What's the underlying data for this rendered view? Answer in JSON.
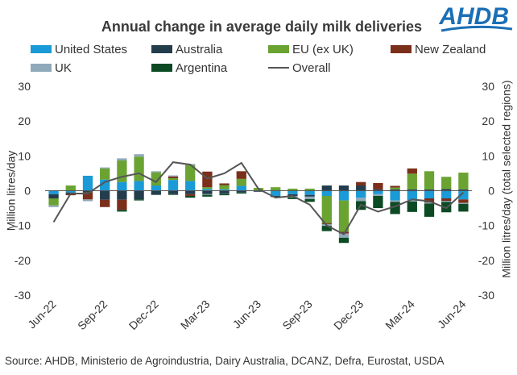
{
  "chart_data": {
    "type": "bar",
    "stacked": true,
    "title": "Annual change in average daily milk deliveries",
    "ylabel": "Million litres/day",
    "ylabel_right": "Million litres/day (total selected regions)",
    "ylim": [
      -30,
      30
    ],
    "yticks": [
      -30,
      -20,
      -10,
      0,
      10,
      20,
      30
    ],
    "grid": false,
    "legend_position": "top",
    "x": [
      "Jun-22",
      "Jul-22",
      "Aug-22",
      "Sep-22",
      "Oct-22",
      "Nov-22",
      "Dec-22",
      "Jan-23",
      "Feb-23",
      "Mar-23",
      "Apr-23",
      "May-23",
      "Jun-23",
      "Jul-23",
      "Aug-23",
      "Sep-23",
      "Oct-23",
      "Nov-23",
      "Dec-23",
      "Jan-24",
      "Feb-24",
      "Mar-24",
      "Apr-24",
      "May-24",
      "Jun-24"
    ],
    "x_tick_labels": [
      "Jun-22",
      "Sep-22",
      "Dec-22",
      "Mar-23",
      "Jun-23",
      "Sep-23",
      "Dec-23",
      "Mar-24",
      "Jun-24"
    ],
    "series": [
      {
        "name": "United States",
        "color": "#1a9ad6",
        "values": [
          -1.0,
          -0.5,
          4.3,
          3.2,
          2.5,
          2.8,
          1.5,
          3.1,
          2.8,
          0.5,
          0.4,
          1.4,
          0.0,
          -1.5,
          -1.0,
          -1.2,
          -1.5,
          -2.8,
          -2.0,
          -1.0,
          -2.8,
          -2.7,
          -2.2,
          -2.2,
          -2.5
        ]
      },
      {
        "name": "Australia",
        "color": "#233d4d",
        "values": [
          -1.2,
          -0.5,
          -0.5,
          -2.6,
          -2.6,
          -2.5,
          -1.2,
          -1.0,
          -1.0,
          -1.0,
          -0.8,
          -0.5,
          -0.3,
          -0.3,
          -0.5,
          -0.5,
          1.5,
          1.5,
          1.5,
          0.4,
          0.4,
          0.4,
          0.4,
          0.5,
          0.4
        ]
      },
      {
        "name": "EU (ex UK)",
        "color": "#6aa332",
        "values": [
          -2.0,
          1.5,
          0.0,
          3.2,
          6.2,
          7.0,
          3.8,
          0.5,
          4.5,
          0.5,
          1.2,
          2.0,
          0.8,
          1.0,
          0.6,
          0.6,
          -7.8,
          -9.0,
          0.0,
          0.0,
          0.5,
          4.5,
          5.2,
          3.5,
          4.8
        ]
      },
      {
        "name": "New Zealand",
        "color": "#7b2f1a",
        "values": [
          0.0,
          -0.3,
          -2.0,
          -2.1,
          -2.9,
          0.0,
          0.0,
          0.5,
          -0.5,
          4.5,
          0.5,
          2.2,
          0.0,
          0.0,
          0.0,
          0.0,
          -0.3,
          -0.5,
          1.0,
          1.8,
          0.5,
          1.5,
          -1.2,
          -0.7,
          -1.0
        ]
      },
      {
        "name": "UK",
        "color": "#8fa9ba",
        "values": [
          -0.5,
          0.0,
          -0.5,
          0.3,
          0.6,
          0.7,
          0.3,
          0.3,
          0.4,
          -0.2,
          -0.1,
          0.0,
          0.0,
          -0.1,
          -0.4,
          -0.7,
          -0.5,
          -1.2,
          -1.0,
          -0.5,
          -0.4,
          -0.4,
          -0.3,
          -0.3,
          -0.3
        ]
      },
      {
        "name": "Argentina",
        "color": "#0c4a23",
        "values": [
          0.0,
          0.0,
          0.0,
          0.0,
          -0.5,
          -0.3,
          0.0,
          -0.2,
          -0.5,
          -0.5,
          -0.4,
          -0.3,
          0.0,
          0.0,
          -0.5,
          -0.8,
          -1.5,
          -1.5,
          -2.5,
          -3.5,
          -3.5,
          -3.0,
          -3.8,
          -3.0,
          -2.2
        ]
      }
    ],
    "overall": {
      "name": "Overall",
      "color": "#555555",
      "values": [
        -9.0,
        -0.8,
        -0.8,
        2.5,
        4.0,
        5.0,
        2.5,
        8.2,
        7.5,
        3.5,
        5.0,
        8.0,
        0.5,
        -2.0,
        -1.5,
        -4.0,
        -10.0,
        -12.5,
        -4.0,
        -6.0,
        -4.5,
        -2.5,
        -3.0,
        -5.0,
        -0.5
      ]
    }
  },
  "source_text": "Source: AHDB, Ministerio de Agroindustria, Dairy Australia, DCANZ, Defra, Eurostat, USDA",
  "logo": {
    "text": "AHDB"
  }
}
